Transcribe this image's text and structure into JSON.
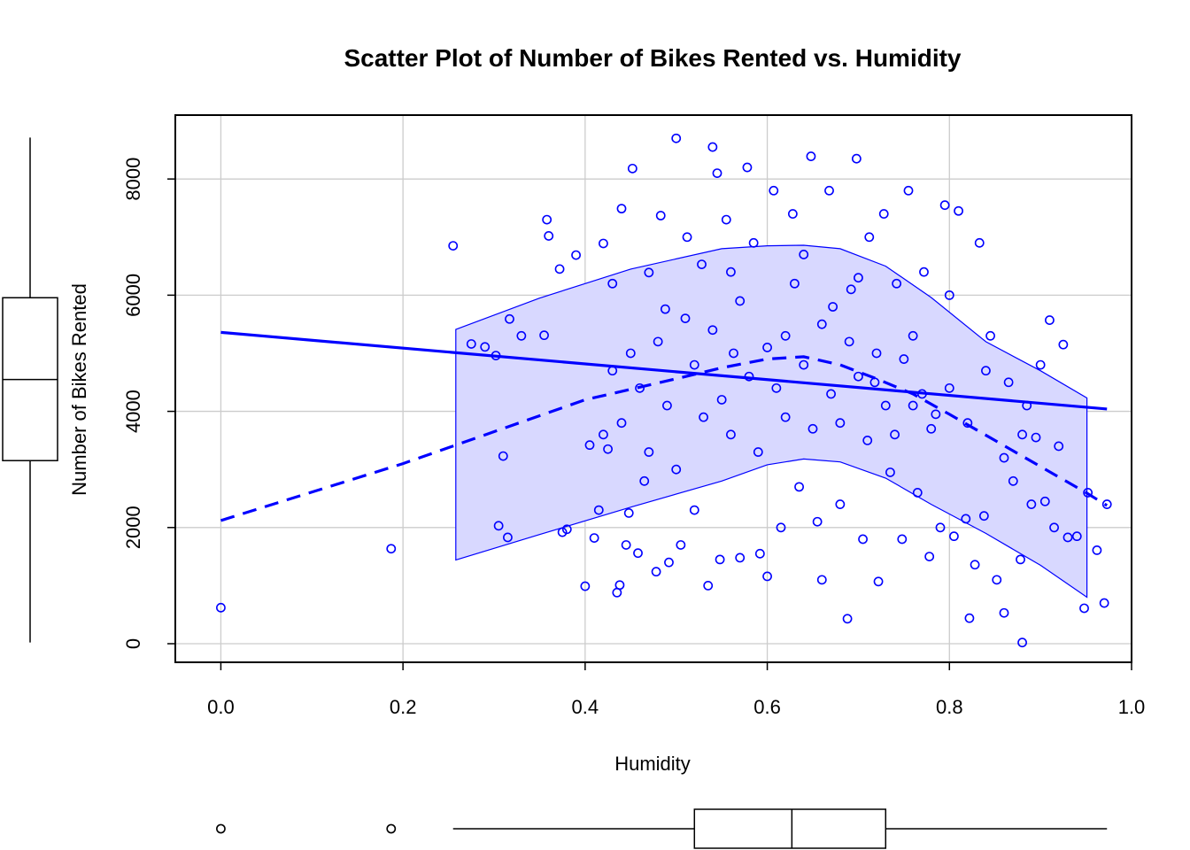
{
  "chart_data": {
    "type": "scatter",
    "title": "Scatter Plot of Number of Bikes Rented vs. Humidity",
    "xlabel": "Humidity",
    "ylabel": "Number of Bikes Rented",
    "xlim": [
      -0.05,
      1.0
    ],
    "ylim": [
      -320,
      9100
    ],
    "x_ticks": [
      0.0,
      0.2,
      0.4,
      0.6,
      0.8,
      1.0
    ],
    "x_tick_labels": [
      "0.0",
      "0.2",
      "0.4",
      "0.6",
      "0.8",
      "1.0"
    ],
    "y_ticks": [
      0,
      2000,
      4000,
      6000,
      8000
    ],
    "y_tick_labels": [
      "0",
      "2000",
      "4000",
      "6000",
      "8000"
    ],
    "grid": true,
    "point_color": "#0000ff",
    "band_fill": "#d8d8ff",
    "points": [
      [
        0.0,
        620
      ],
      [
        0.187,
        1635
      ],
      [
        0.255,
        6850
      ],
      [
        0.275,
        5160
      ],
      [
        0.29,
        5110
      ],
      [
        0.302,
        4960
      ],
      [
        0.305,
        2030
      ],
      [
        0.31,
        3230
      ],
      [
        0.315,
        1830
      ],
      [
        0.317,
        5590
      ],
      [
        0.33,
        5300
      ],
      [
        0.355,
        5310
      ],
      [
        0.358,
        7300
      ],
      [
        0.36,
        7020
      ],
      [
        0.372,
        6450
      ],
      [
        0.375,
        1920
      ],
      [
        0.38,
        1970
      ],
      [
        0.39,
        6690
      ],
      [
        0.4,
        990
      ],
      [
        0.405,
        3420
      ],
      [
        0.41,
        1820
      ],
      [
        0.415,
        2300
      ],
      [
        0.42,
        6890
      ],
      [
        0.425,
        3350
      ],
      [
        0.43,
        6200
      ],
      [
        0.435,
        880
      ],
      [
        0.438,
        1010
      ],
      [
        0.44,
        7490
      ],
      [
        0.445,
        1700
      ],
      [
        0.448,
        2250
      ],
      [
        0.452,
        8180
      ],
      [
        0.458,
        1560
      ],
      [
        0.465,
        2800
      ],
      [
        0.47,
        6390
      ],
      [
        0.478,
        1240
      ],
      [
        0.483,
        7370
      ],
      [
        0.488,
        5760
      ],
      [
        0.492,
        1400
      ],
      [
        0.5,
        8700
      ],
      [
        0.505,
        1700
      ],
      [
        0.512,
        7000
      ],
      [
        0.52,
        2300
      ],
      [
        0.528,
        6530
      ],
      [
        0.535,
        1000
      ],
      [
        0.54,
        8550
      ],
      [
        0.545,
        8100
      ],
      [
        0.548,
        1450
      ],
      [
        0.555,
        7300
      ],
      [
        0.563,
        5000
      ],
      [
        0.57,
        1480
      ],
      [
        0.578,
        8200
      ],
      [
        0.585,
        6900
      ],
      [
        0.592,
        1550
      ],
      [
        0.6,
        1160
      ],
      [
        0.607,
        7800
      ],
      [
        0.615,
        2000
      ],
      [
        0.62,
        5300
      ],
      [
        0.628,
        7400
      ],
      [
        0.635,
        2700
      ],
      [
        0.64,
        6700
      ],
      [
        0.648,
        8390
      ],
      [
        0.655,
        2100
      ],
      [
        0.66,
        1100
      ],
      [
        0.668,
        7800
      ],
      [
        0.672,
        5800
      ],
      [
        0.68,
        2400
      ],
      [
        0.688,
        430
      ],
      [
        0.692,
        6100
      ],
      [
        0.698,
        8350
      ],
      [
        0.705,
        1800
      ],
      [
        0.712,
        7000
      ],
      [
        0.718,
        4500
      ],
      [
        0.722,
        1070
      ],
      [
        0.728,
        7400
      ],
      [
        0.735,
        2950
      ],
      [
        0.742,
        6200
      ],
      [
        0.748,
        1800
      ],
      [
        0.755,
        7800
      ],
      [
        0.76,
        4100
      ],
      [
        0.765,
        2600
      ],
      [
        0.772,
        6400
      ],
      [
        0.778,
        1500
      ],
      [
        0.785,
        3950
      ],
      [
        0.79,
        2000
      ],
      [
        0.795,
        7550
      ],
      [
        0.8,
        6000
      ],
      [
        0.805,
        1850
      ],
      [
        0.81,
        7450
      ],
      [
        0.818,
        2150
      ],
      [
        0.822,
        440
      ],
      [
        0.828,
        1360
      ],
      [
        0.833,
        6900
      ],
      [
        0.838,
        2200
      ],
      [
        0.845,
        5300
      ],
      [
        0.852,
        1100
      ],
      [
        0.86,
        530
      ],
      [
        0.865,
        4500
      ],
      [
        0.87,
        2800
      ],
      [
        0.878,
        1450
      ],
      [
        0.88,
        20
      ],
      [
        0.885,
        4100
      ],
      [
        0.89,
        2400
      ],
      [
        0.895,
        3550
      ],
      [
        0.9,
        4800
      ],
      [
        0.905,
        2450
      ],
      [
        0.91,
        5570
      ],
      [
        0.915,
        2000
      ],
      [
        0.92,
        3400
      ],
      [
        0.925,
        5150
      ],
      [
        0.93,
        1830
      ],
      [
        0.94,
        1850
      ],
      [
        0.948,
        610
      ],
      [
        0.952,
        2600
      ],
      [
        0.962,
        1610
      ],
      [
        0.97,
        700
      ],
      [
        0.973,
        2400
      ],
      [
        0.52,
        4800
      ],
      [
        0.53,
        3900
      ],
      [
        0.54,
        5400
      ],
      [
        0.55,
        4200
      ],
      [
        0.56,
        3600
      ],
      [
        0.57,
        5900
      ],
      [
        0.58,
        4600
      ],
      [
        0.59,
        3300
      ],
      [
        0.6,
        5100
      ],
      [
        0.61,
        4400
      ],
      [
        0.62,
        3900
      ],
      [
        0.63,
        6200
      ],
      [
        0.64,
        4800
      ],
      [
        0.65,
        3700
      ],
      [
        0.66,
        5500
      ],
      [
        0.67,
        4300
      ],
      [
        0.68,
        3800
      ],
      [
        0.69,
        5200
      ],
      [
        0.7,
        4600
      ],
      [
        0.71,
        3500
      ],
      [
        0.72,
        5000
      ],
      [
        0.73,
        4100
      ],
      [
        0.74,
        3600
      ],
      [
        0.75,
        4900
      ],
      [
        0.46,
        4400
      ],
      [
        0.47,
        3300
      ],
      [
        0.48,
        5200
      ],
      [
        0.49,
        4100
      ],
      [
        0.5,
        3000
      ],
      [
        0.51,
        5600
      ],
      [
        0.44,
        3800
      ],
      [
        0.45,
        5000
      ],
      [
        0.43,
        4700
      ],
      [
        0.42,
        3600
      ],
      [
        0.77,
        4300
      ],
      [
        0.78,
        3700
      ],
      [
        0.8,
        4400
      ],
      [
        0.82,
        3800
      ],
      [
        0.84,
        4700
      ],
      [
        0.86,
        3200
      ],
      [
        0.88,
        3600
      ],
      [
        0.76,
        5300
      ],
      [
        0.7,
        6300
      ],
      [
        0.56,
        6400
      ]
    ],
    "linear_fit": {
      "x": [
        0.0,
        0.973
      ],
      "y": [
        5360,
        4040
      ]
    },
    "smooth_line": {
      "x": [
        0.0,
        0.2,
        0.4,
        0.5,
        0.55,
        0.6,
        0.64,
        0.68,
        0.72,
        0.76,
        0.8,
        0.85,
        0.9,
        0.95,
        0.973
      ],
      "y": [
        2120,
        3100,
        4200,
        4560,
        4750,
        4900,
        4940,
        4800,
        4560,
        4300,
        3950,
        3500,
        3050,
        2600,
        2380
      ]
    },
    "confidence_band": {
      "x": [
        0.258,
        0.35,
        0.45,
        0.55,
        0.6,
        0.64,
        0.68,
        0.73,
        0.78,
        0.84,
        0.9,
        0.951
      ],
      "upper": [
        5410,
        5950,
        6450,
        6800,
        6850,
        6860,
        6800,
        6500,
        5960,
        5200,
        4700,
        4230
      ],
      "lower": [
        1440,
        1880,
        2350,
        2800,
        3080,
        3180,
        3130,
        2850,
        2400,
        1900,
        1350,
        800
      ]
    },
    "x_boxplot": {
      "min": 0.255,
      "q1": 0.52,
      "median": 0.627,
      "q3": 0.73,
      "max": 0.973,
      "outliers": [
        0.0,
        0.187
      ]
    },
    "y_boxplot": {
      "min": 22,
      "q1": 3152,
      "median": 4548,
      "q3": 5956,
      "max": 8714
    }
  }
}
